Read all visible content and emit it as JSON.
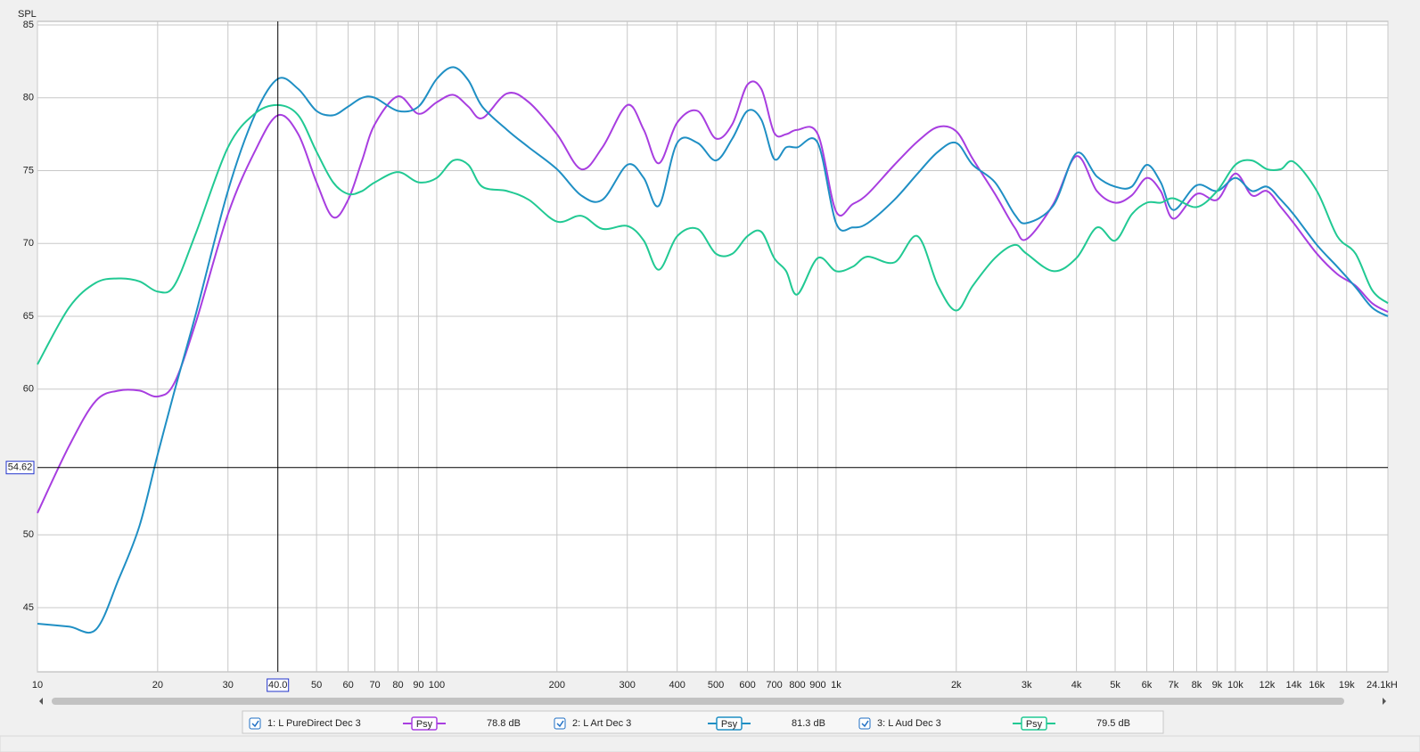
{
  "chart_data": {
    "type": "line",
    "y_label": "SPL",
    "log_x": true,
    "grid": true,
    "xlim": [
      10,
      24100
    ],
    "ylim": [
      40.6,
      85
    ],
    "yticks": [
      45,
      50,
      60,
      65,
      70,
      75,
      80,
      85
    ],
    "xticks": [
      10,
      20,
      30,
      50,
      60,
      70,
      80,
      90,
      100,
      200,
      300,
      400,
      500,
      600,
      700,
      800,
      900,
      {
        "value": 1000,
        "label": "1k"
      },
      {
        "value": 2000,
        "label": "2k"
      },
      {
        "value": 3000,
        "label": "3k"
      },
      {
        "value": 4000,
        "label": "4k"
      },
      {
        "value": 5000,
        "label": "5k"
      },
      {
        "value": 6000,
        "label": "6k"
      },
      {
        "value": 7000,
        "label": "7k"
      },
      {
        "value": 8000,
        "label": "8k"
      },
      {
        "value": 9000,
        "label": "9k"
      },
      {
        "value": 10000,
        "label": "10k"
      },
      {
        "value": 12000,
        "label": "12k"
      },
      {
        "value": 14000,
        "label": "14k"
      },
      {
        "value": 16000,
        "label": "16k"
      },
      {
        "value": 19000,
        "label": "19k"
      },
      {
        "value": 24100,
        "label": "24.1kH"
      }
    ],
    "cursor": {
      "x": {
        "value": 40,
        "label": "40.0"
      },
      "y": 54.62
    },
    "x": [
      10,
      12,
      14,
      16,
      18,
      20,
      22,
      25,
      30,
      35,
      40,
      45,
      50,
      55,
      60,
      65,
      70,
      80,
      90,
      100,
      110,
      120,
      130,
      150,
      170,
      200,
      230,
      260,
      300,
      330,
      360,
      400,
      450,
      500,
      550,
      600,
      650,
      700,
      750,
      800,
      900,
      1000,
      1100,
      1200,
      1400,
      1600,
      1800,
      2000,
      2200,
      2500,
      2800,
      3000,
      3500,
      4000,
      4500,
      5000,
      5500,
      6000,
      6500,
      7000,
      8000,
      9000,
      10000,
      11000,
      12000,
      13000,
      14000,
      16000,
      18000,
      20000,
      22000,
      24100
    ],
    "series": [
      {
        "name": "1: L PureDirect Dec 3",
        "smoothing": "Psy",
        "color": "#a83ee0",
        "readout": {
          "value": 78.8,
          "label": "78.8 dB"
        },
        "values": [
          51.5,
          56.1,
          59.2,
          59.9,
          59.9,
          59.5,
          60.4,
          64.7,
          72.0,
          76.3,
          78.8,
          77.5,
          74.2,
          71.8,
          73.0,
          75.7,
          78.2,
          80.1,
          78.9,
          79.7,
          80.2,
          79.4,
          78.6,
          80.3,
          79.7,
          77.5,
          75.1,
          76.6,
          79.5,
          77.8,
          75.5,
          78.3,
          79.1,
          77.2,
          78.2,
          80.9,
          80.6,
          77.6,
          77.5,
          77.8,
          77.5,
          72.2,
          72.7,
          73.4,
          75.4,
          77.0,
          78.0,
          77.7,
          75.8,
          73.4,
          71.1,
          70.3,
          72.7,
          76.0,
          73.6,
          72.8,
          73.3,
          74.5,
          73.6,
          71.7,
          73.4,
          73.0,
          74.8,
          73.3,
          73.6,
          72.5,
          71.4,
          69.3,
          67.9,
          67.1,
          65.9,
          65.3
        ]
      },
      {
        "name": "2: L Art Dec 3",
        "smoothing": "Psy",
        "color": "#1f8fc4",
        "readout": {
          "value": 81.3,
          "label": "81.3 dB"
        },
        "values": [
          43.9,
          43.7,
          43.5,
          47.0,
          50.6,
          55.5,
          59.8,
          65.3,
          73.6,
          78.8,
          81.3,
          80.6,
          79.1,
          78.8,
          79.4,
          80.0,
          80.0,
          79.1,
          79.4,
          81.3,
          82.1,
          81.2,
          79.4,
          77.8,
          76.6,
          75.1,
          73.3,
          73.0,
          75.4,
          74.5,
          72.6,
          76.9,
          76.9,
          75.7,
          77.2,
          79.1,
          78.5,
          75.8,
          76.6,
          76.6,
          76.9,
          71.4,
          71.1,
          71.4,
          73.0,
          74.8,
          76.3,
          76.9,
          75.4,
          74.2,
          72.0,
          71.4,
          72.6,
          76.2,
          74.6,
          73.9,
          73.9,
          75.4,
          74.2,
          72.3,
          74.0,
          73.6,
          74.5,
          73.6,
          73.9,
          73.0,
          72.0,
          69.9,
          68.4,
          67.0,
          65.6,
          65.0
        ]
      },
      {
        "name": "3: L Aud Dec 3",
        "smoothing": "Psy",
        "color": "#21c993",
        "readout": {
          "value": 79.5,
          "label": "79.5 dB"
        },
        "values": [
          61.7,
          65.6,
          67.3,
          67.6,
          67.4,
          66.7,
          67.1,
          70.8,
          76.6,
          78.9,
          79.5,
          78.8,
          76.3,
          74.2,
          73.4,
          73.6,
          74.2,
          74.9,
          74.2,
          74.5,
          75.7,
          75.4,
          73.9,
          73.6,
          73.0,
          71.5,
          71.9,
          71.0,
          71.2,
          70.2,
          68.2,
          70.5,
          71.0,
          69.3,
          69.3,
          70.5,
          70.8,
          69.0,
          68.1,
          66.5,
          69.0,
          68.1,
          68.4,
          69.1,
          68.7,
          70.5,
          67.1,
          65.4,
          67.1,
          69.0,
          69.9,
          69.3,
          68.1,
          69.0,
          71.1,
          70.2,
          72.0,
          72.8,
          72.8,
          73.1,
          72.5,
          73.6,
          75.4,
          75.7,
          75.1,
          75.1,
          75.6,
          73.6,
          70.5,
          69.3,
          66.8,
          65.9
        ]
      }
    ]
  }
}
